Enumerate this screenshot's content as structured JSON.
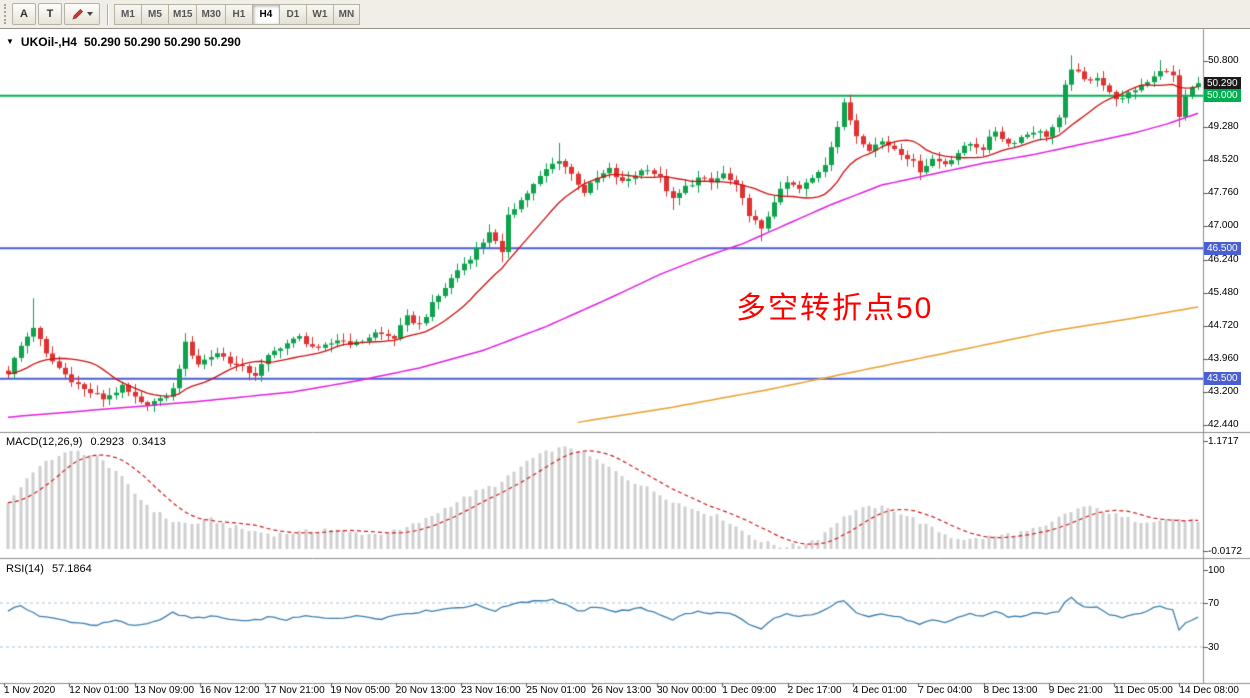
{
  "toolbar": {
    "tool_buttons": [
      {
        "label": "A"
      },
      {
        "label": "T"
      },
      {
        "icon": "pencil-dropdown"
      }
    ],
    "timeframes": [
      "M1",
      "M5",
      "M15",
      "M30",
      "H1",
      "H4",
      "D1",
      "W1",
      "MN"
    ],
    "active_timeframe": "H4"
  },
  "chart": {
    "title": "UKOil-,H4",
    "ohlc": "50.290 50.290 50.290 50.290",
    "annotation": {
      "text": "多空转折点50",
      "color": "#ff0000"
    },
    "axis": {
      "price_labels": [
        "50.800",
        "49.280",
        "48.520",
        "47.760",
        "47.000",
        "46.240",
        "45.480",
        "44.720",
        "43.960",
        "43.200",
        "42.440"
      ],
      "badges": [
        {
          "value": "50.290",
          "bg": "#1a1a1a"
        },
        {
          "value": "50.000",
          "bg": "#00b050"
        },
        {
          "value": "46.500",
          "bg": "#4a5fd0"
        },
        {
          "value": "43.500",
          "bg": "#4a5fd0"
        }
      ]
    },
    "hlines": [
      {
        "price": 50.0,
        "color": "#00b050",
        "width": 2
      },
      {
        "price": 46.5,
        "color": "#4a5fd0",
        "width": 2
      },
      {
        "price": 43.5,
        "color": "#4a5fd0",
        "width": 2
      }
    ]
  },
  "macd": {
    "label": "MACD(12,26,9)",
    "value_main": "0.2923",
    "value_signal": "0.3413",
    "axis_labels": [
      "1.1717",
      "-0.0172"
    ]
  },
  "rsi": {
    "label": "RSI(14)",
    "value": "57.1864",
    "axis_labels": [
      "100",
      "70",
      "30"
    ],
    "levels": [
      70,
      30
    ]
  },
  "time_axis": [
    "1 Nov 2020",
    "12 Nov 01:00",
    "13 Nov 09:00",
    "16 Nov 12:00",
    "17 Nov 21:00",
    "19 Nov 05:00",
    "20 Nov 13:00",
    "23 Nov 16:00",
    "25 Nov 01:00",
    "26 Nov 13:00",
    "30 Nov 00:00",
    "1 Dec 09:00",
    "2 Dec 17:00",
    "4 Dec 01:00",
    "7 Dec 04:00",
    "8 Dec 13:00",
    "9 Dec 21:00",
    "11 Dec 05:00",
    "14 Dec 08:00"
  ],
  "chart_data": {
    "type": "candlestick",
    "symbol": "UKOil-",
    "timeframe": "H4",
    "price_range": [
      42.2,
      51.1
    ],
    "last_price": 50.29,
    "n_candles": 189,
    "close_waypoints": [
      [
        0,
        43.65
      ],
      [
        2,
        44.25
      ],
      [
        4,
        44.7
      ],
      [
        6,
        44.05
      ],
      [
        9,
        43.6
      ],
      [
        12,
        43.25
      ],
      [
        15,
        43.05
      ],
      [
        18,
        43.3
      ],
      [
        21,
        42.92
      ],
      [
        24,
        43.0
      ],
      [
        26,
        43.25
      ],
      [
        28,
        44.3
      ],
      [
        30,
        43.85
      ],
      [
        33,
        44.1
      ],
      [
        36,
        43.8
      ],
      [
        39,
        43.6
      ],
      [
        41,
        44.0
      ],
      [
        43,
        44.25
      ],
      [
        46,
        44.45
      ],
      [
        49,
        44.15
      ],
      [
        52,
        44.4
      ],
      [
        55,
        44.3
      ],
      [
        58,
        44.55
      ],
      [
        61,
        44.45
      ],
      [
        63,
        44.9
      ],
      [
        65,
        44.75
      ],
      [
        67,
        45.2
      ],
      [
        69,
        45.6
      ],
      [
        71,
        46.0
      ],
      [
        73,
        46.3
      ],
      [
        75,
        46.65
      ],
      [
        76,
        46.9
      ],
      [
        78,
        46.35
      ],
      [
        79,
        47.3
      ],
      [
        81,
        47.6
      ],
      [
        83,
        47.95
      ],
      [
        85,
        48.3
      ],
      [
        87,
        48.55
      ],
      [
        89,
        48.2
      ],
      [
        91,
        47.8
      ],
      [
        93,
        48.1
      ],
      [
        95,
        48.3
      ],
      [
        97,
        48.0
      ],
      [
        99,
        48.2
      ],
      [
        101,
        48.35
      ],
      [
        103,
        48.1
      ],
      [
        105,
        47.6
      ],
      [
        107,
        47.9
      ],
      [
        109,
        48.1
      ],
      [
        111,
        48.0
      ],
      [
        113,
        48.2
      ],
      [
        115,
        47.9
      ],
      [
        117,
        47.3
      ],
      [
        119,
        46.9
      ],
      [
        121,
        47.6
      ],
      [
        123,
        48.0
      ],
      [
        125,
        47.85
      ],
      [
        127,
        48.1
      ],
      [
        129,
        48.45
      ],
      [
        131,
        49.3
      ],
      [
        132,
        49.8
      ],
      [
        134,
        49.1
      ],
      [
        136,
        48.8
      ],
      [
        138,
        48.95
      ],
      [
        140,
        48.8
      ],
      [
        142,
        48.6
      ],
      [
        144,
        48.3
      ],
      [
        146,
        48.55
      ],
      [
        148,
        48.45
      ],
      [
        150,
        48.7
      ],
      [
        152,
        48.9
      ],
      [
        154,
        48.8
      ],
      [
        156,
        49.2
      ],
      [
        158,
        48.9
      ],
      [
        160,
        49.05
      ],
      [
        162,
        49.2
      ],
      [
        164,
        49.1
      ],
      [
        166,
        49.45
      ],
      [
        167,
        50.2
      ],
      [
        168,
        50.65
      ],
      [
        170,
        50.35
      ],
      [
        172,
        50.45
      ],
      [
        174,
        50.05
      ],
      [
        176,
        49.9
      ],
      [
        178,
        50.15
      ],
      [
        180,
        50.35
      ],
      [
        182,
        50.6
      ],
      [
        184,
        50.45
      ],
      [
        185,
        49.55
      ],
      [
        186,
        49.95
      ],
      [
        187,
        50.2
      ],
      [
        188,
        50.29
      ]
    ],
    "wick_spikes": [
      {
        "i": 4,
        "high": 45.35
      },
      {
        "i": 22,
        "low": 42.76
      },
      {
        "i": 28,
        "high": 44.55
      },
      {
        "i": 76,
        "high": 47.05
      },
      {
        "i": 78,
        "low": 46.18
      },
      {
        "i": 87,
        "high": 48.92
      },
      {
        "i": 105,
        "low": 47.38
      },
      {
        "i": 119,
        "low": 46.66
      },
      {
        "i": 132,
        "high": 49.94
      },
      {
        "i": 168,
        "high": 50.93
      },
      {
        "i": 182,
        "high": 50.82
      },
      {
        "i": 185,
        "low": 49.28
      }
    ],
    "ma_red_period": 13,
    "ma_magenta_waypoints": [
      [
        0,
        42.62
      ],
      [
        15,
        42.8
      ],
      [
        30,
        42.98
      ],
      [
        45,
        43.2
      ],
      [
        55,
        43.45
      ],
      [
        65,
        43.75
      ],
      [
        75,
        44.15
      ],
      [
        85,
        44.7
      ],
      [
        95,
        45.35
      ],
      [
        103,
        45.9
      ],
      [
        110,
        46.3
      ],
      [
        116,
        46.6
      ],
      [
        123,
        47.05
      ],
      [
        130,
        47.5
      ],
      [
        138,
        47.95
      ],
      [
        146,
        48.2
      ],
      [
        154,
        48.45
      ],
      [
        162,
        48.65
      ],
      [
        170,
        48.9
      ],
      [
        178,
        49.15
      ],
      [
        183,
        49.35
      ],
      [
        188,
        49.6
      ]
    ],
    "ma_orange_waypoints": [
      [
        90,
        42.5
      ],
      [
        105,
        42.85
      ],
      [
        120,
        43.25
      ],
      [
        135,
        43.7
      ],
      [
        150,
        44.15
      ],
      [
        165,
        44.6
      ],
      [
        178,
        44.9
      ],
      [
        188,
        45.15
      ]
    ],
    "macd": {
      "waypoints": [
        [
          0,
          0.5
        ],
        [
          4,
          0.85
        ],
        [
          8,
          1.02
        ],
        [
          11,
          1.06
        ],
        [
          14,
          1.0
        ],
        [
          17,
          0.85
        ],
        [
          20,
          0.6
        ],
        [
          23,
          0.42
        ],
        [
          26,
          0.3
        ],
        [
          29,
          0.27
        ],
        [
          32,
          0.32
        ],
        [
          35,
          0.25
        ],
        [
          38,
          0.2
        ],
        [
          42,
          0.16
        ],
        [
          46,
          0.18
        ],
        [
          50,
          0.22
        ],
        [
          54,
          0.18
        ],
        [
          58,
          0.16
        ],
        [
          62,
          0.2
        ],
        [
          66,
          0.32
        ],
        [
          70,
          0.48
        ],
        [
          74,
          0.62
        ],
        [
          78,
          0.72
        ],
        [
          82,
          0.95
        ],
        [
          86,
          1.08
        ],
        [
          89,
          1.1
        ],
        [
          92,
          1.0
        ],
        [
          95,
          0.88
        ],
        [
          98,
          0.76
        ],
        [
          101,
          0.66
        ],
        [
          104,
          0.56
        ],
        [
          107,
          0.46
        ],
        [
          110,
          0.4
        ],
        [
          113,
          0.33
        ],
        [
          116,
          0.2
        ],
        [
          119,
          0.08
        ],
        [
          122,
          0.03
        ],
        [
          125,
          0.04
        ],
        [
          128,
          0.12
        ],
        [
          131,
          0.3
        ],
        [
          134,
          0.42
        ],
        [
          137,
          0.46
        ],
        [
          140,
          0.42
        ],
        [
          143,
          0.33
        ],
        [
          146,
          0.22
        ],
        [
          149,
          0.13
        ],
        [
          152,
          0.1
        ],
        [
          155,
          0.13
        ],
        [
          158,
          0.16
        ],
        [
          161,
          0.19
        ],
        [
          164,
          0.24
        ],
        [
          167,
          0.38
        ],
        [
          170,
          0.46
        ],
        [
          173,
          0.42
        ],
        [
          176,
          0.34
        ],
        [
          179,
          0.3
        ],
        [
          182,
          0.32
        ],
        [
          185,
          0.33
        ],
        [
          188,
          0.2923
        ]
      ],
      "signal_period": 9,
      "current_main": 0.2923,
      "current_signal": 0.3413,
      "axis_max": 1.1717,
      "axis_min": -0.0172
    },
    "rsi": {
      "waypoints": [
        [
          0,
          62
        ],
        [
          2,
          68
        ],
        [
          5,
          58
        ],
        [
          8,
          55
        ],
        [
          11,
          52
        ],
        [
          14,
          50
        ],
        [
          17,
          54
        ],
        [
          20,
          49
        ],
        [
          23,
          53
        ],
        [
          26,
          61
        ],
        [
          29,
          56
        ],
        [
          32,
          58
        ],
        [
          35,
          55
        ],
        [
          38,
          53
        ],
        [
          41,
          57
        ],
        [
          44,
          55
        ],
        [
          47,
          58
        ],
        [
          50,
          56
        ],
        [
          53,
          57
        ],
        [
          56,
          58
        ],
        [
          59,
          56
        ],
        [
          62,
          60
        ],
        [
          65,
          62
        ],
        [
          68,
          64
        ],
        [
          71,
          66
        ],
        [
          74,
          68
        ],
        [
          77,
          63
        ],
        [
          80,
          70
        ],
        [
          83,
          72
        ],
        [
          86,
          73
        ],
        [
          88,
          69
        ],
        [
          90,
          62
        ],
        [
          92,
          65
        ],
        [
          94,
          66
        ],
        [
          96,
          62
        ],
        [
          98,
          64
        ],
        [
          100,
          65
        ],
        [
          102,
          62
        ],
        [
          105,
          55
        ],
        [
          107,
          60
        ],
        [
          109,
          62
        ],
        [
          111,
          60
        ],
        [
          113,
          62
        ],
        [
          115,
          58
        ],
        [
          117,
          50
        ],
        [
          119,
          46
        ],
        [
          121,
          56
        ],
        [
          123,
          60
        ],
        [
          125,
          57
        ],
        [
          127,
          60
        ],
        [
          129,
          63
        ],
        [
          131,
          70
        ],
        [
          132,
          73
        ],
        [
          134,
          62
        ],
        [
          136,
          58
        ],
        [
          138,
          60
        ],
        [
          140,
          58
        ],
        [
          142,
          55
        ],
        [
          144,
          50
        ],
        [
          146,
          54
        ],
        [
          148,
          52
        ],
        [
          150,
          57
        ],
        [
          152,
          60
        ],
        [
          154,
          58
        ],
        [
          156,
          63
        ],
        [
          158,
          57
        ],
        [
          160,
          58
        ],
        [
          162,
          61
        ],
        [
          164,
          59
        ],
        [
          166,
          63
        ],
        [
          167,
          70
        ],
        [
          168,
          75
        ],
        [
          170,
          66
        ],
        [
          172,
          67
        ],
        [
          174,
          60
        ],
        [
          176,
          57
        ],
        [
          178,
          60
        ],
        [
          180,
          63
        ],
        [
          182,
          67
        ],
        [
          184,
          64
        ],
        [
          185,
          45
        ],
        [
          186,
          52
        ],
        [
          187,
          55
        ],
        [
          188,
          57.19
        ]
      ],
      "current": 57.1864,
      "levels": [
        70,
        30
      ]
    },
    "colors": {
      "up": "#0fa24c",
      "down": "#e03232",
      "ma_red": "#cc1111",
      "ma_magenta": "#e020e0",
      "ma_orange": "#e8a030",
      "macd_hist": "#cfcfcf",
      "macd_signal": "#d02020",
      "rsi_line": "#3d7eae",
      "rsi_level": "#a8c4d8"
    }
  }
}
